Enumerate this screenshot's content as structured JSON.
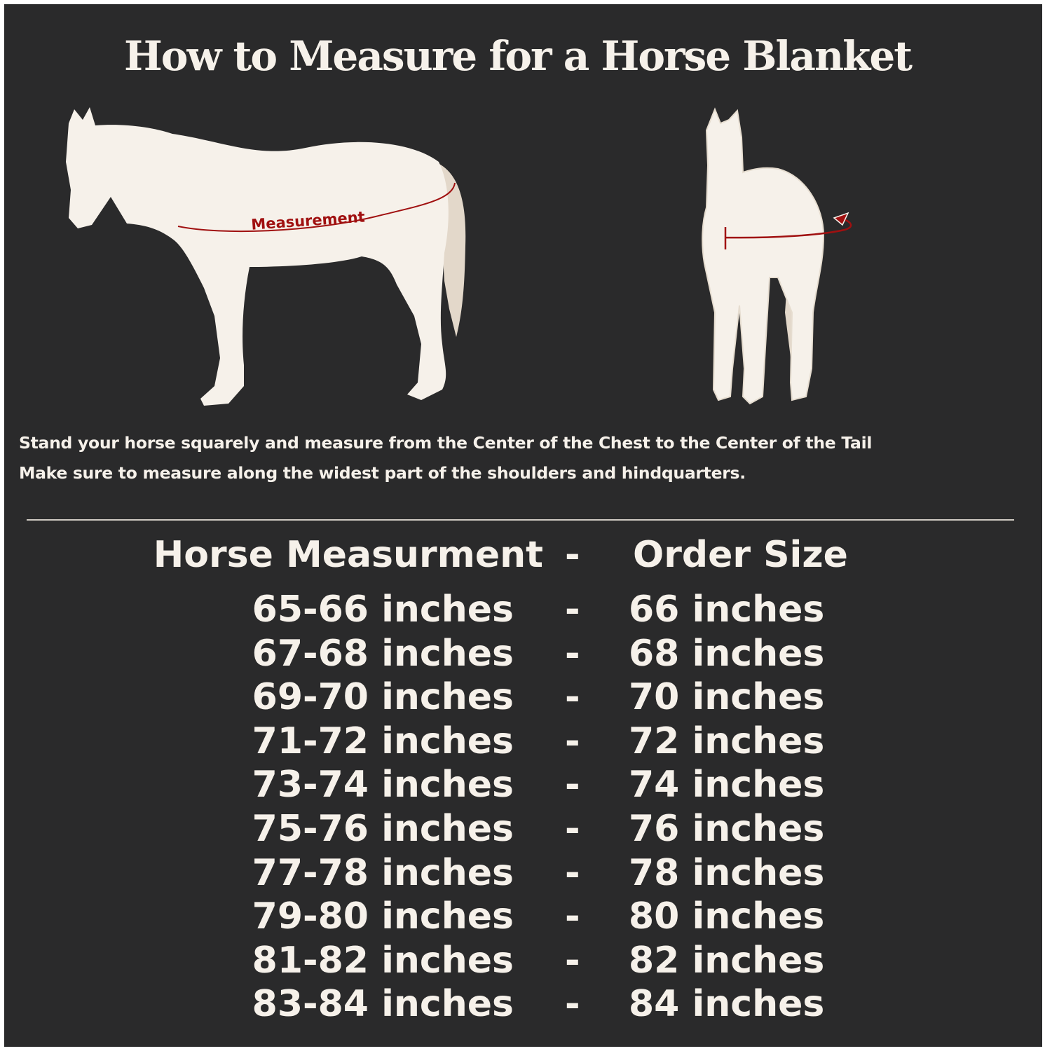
{
  "title": "How to Measure for a Horse Blanket",
  "diagram": {
    "side_label": "Measurement",
    "colors": {
      "background": "#2a2a2b",
      "horse": "#f6f1ea",
      "tail": "#e3d8ca",
      "measure_line": "#a01010"
    }
  },
  "instructions": [
    "Stand your horse squarely and measure from the Center of the Chest to the Center of the Tail",
    "Make sure to measure along the widest part of the shoulders and hindquarters."
  ],
  "size_table": {
    "header": {
      "measurement": "Horse Measurment",
      "separator": "-",
      "size": "Order Size"
    },
    "rows": [
      {
        "measurement": "65-66 inches",
        "separator": "-",
        "size": "66 inches"
      },
      {
        "measurement": "67-68 inches",
        "separator": "-",
        "size": "68 inches"
      },
      {
        "measurement": "69-70 inches",
        "separator": "-",
        "size": "70 inches"
      },
      {
        "measurement": "71-72 inches",
        "separator": "-",
        "size": "72 inches"
      },
      {
        "measurement": "73-74 inches",
        "separator": "-",
        "size": "74 inches"
      },
      {
        "measurement": "75-76 inches",
        "separator": "-",
        "size": "76 inches"
      },
      {
        "measurement": "77-78 inches",
        "separator": "-",
        "size": "78 inches"
      },
      {
        "measurement": "79-80 inches",
        "separator": "-",
        "size": "80 inches"
      },
      {
        "measurement": "81-82 inches",
        "separator": "-",
        "size": "82 inches"
      },
      {
        "measurement": "83-84 inches",
        "separator": "-",
        "size": "84 inches"
      }
    ]
  }
}
